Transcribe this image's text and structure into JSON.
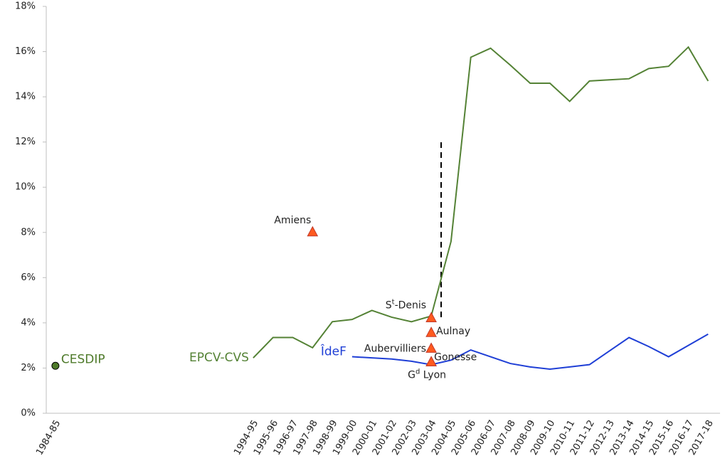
{
  "chart_data": {
    "type": "line",
    "categories": [
      "1984-85",
      null,
      null,
      null,
      null,
      null,
      null,
      null,
      null,
      null,
      "1994-95",
      "1995-96",
      "1996-97",
      "1997-98",
      "1998-99",
      "1999-00",
      "2000-01",
      "2001-02",
      "2002-03",
      "2003-04",
      "2004-05",
      "2005-06",
      "2006-07",
      "2007-08",
      "2008-09",
      "2009-10",
      "2010-11",
      "2011-12",
      "2012-13",
      "2013-14",
      "2014-15",
      "2015-16",
      "2016-17",
      "2017-18"
    ],
    "ylim": [
      0,
      18
    ],
    "yticks": [
      {
        "value": 0,
        "label": "0%"
      },
      {
        "value": 2,
        "label": "2%"
      },
      {
        "value": 4,
        "label": "4%"
      },
      {
        "value": 6,
        "label": "6%"
      },
      {
        "value": 8,
        "label": "8%"
      },
      {
        "value": 10,
        "label": "10%"
      },
      {
        "value": 12,
        "label": "12%"
      },
      {
        "value": 14,
        "label": "14%"
      },
      {
        "value": 16,
        "label": "16%"
      },
      {
        "value": 18,
        "label": "18%"
      }
    ],
    "series": [
      {
        "name": "EPCV-CVS",
        "color": "#548235",
        "values": [
          null,
          null,
          null,
          null,
          null,
          null,
          null,
          null,
          null,
          null,
          2.45,
          3.35,
          3.35,
          2.9,
          4.05,
          4.15,
          4.55,
          4.25,
          4.05,
          4.3,
          7.6,
          15.75,
          16.15,
          15.4,
          14.6,
          14.6,
          13.8,
          14.7,
          14.75,
          14.8,
          15.25,
          15.35,
          16.2,
          14.7
        ]
      },
      {
        "name": "ÎdeF",
        "color": "#1f3fd6",
        "values": [
          null,
          null,
          null,
          null,
          null,
          null,
          null,
          null,
          null,
          null,
          null,
          null,
          null,
          null,
          null,
          2.5,
          2.45,
          2.4,
          2.3,
          2.15,
          2.35,
          2.8,
          2.5,
          2.2,
          2.05,
          1.95,
          2.05,
          2.15,
          2.75,
          3.35,
          2.95,
          2.5,
          3.0,
          3.5
        ]
      },
      {
        "name": "CESDIP",
        "color": "#4e7a2a",
        "marker": "circle",
        "values": [
          2.1,
          null,
          null,
          null,
          null,
          null,
          null,
          null,
          null,
          null,
          null,
          null,
          null,
          null,
          null,
          null,
          null,
          null,
          null,
          null,
          null,
          null,
          null,
          null,
          null,
          null,
          null,
          null,
          null,
          null,
          null,
          null,
          null,
          null
        ]
      }
    ],
    "points": [
      {
        "label_parts": [
          "Amiens"
        ],
        "category": "1997-98",
        "value": 8.0
      },
      {
        "label_parts": [
          "S",
          "t",
          "-Denis"
        ],
        "category": "2003-04",
        "value": 4.2
      },
      {
        "label_parts": [
          "Aulnay"
        ],
        "category": "2003-04",
        "value": 3.55
      },
      {
        "label_parts": [
          "Aubervilliers"
        ],
        "category": "2003-04",
        "value": 2.85
      },
      {
        "label_parts": [
          "Gonesse"
        ],
        "category": "2003-04",
        "value": 2.25
      },
      {
        "label_parts": [
          "G",
          "d",
          " Lyon"
        ],
        "category": "2003-04",
        "value": 2.25
      }
    ],
    "point_color": "#ff5a1f"
  }
}
